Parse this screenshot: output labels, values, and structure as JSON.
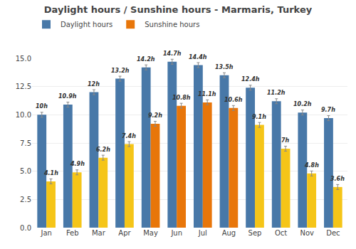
{
  "chart_data": {
    "type": "bar",
    "title": "Daylight hours / Sunshine hours - Marmaris, Turkey",
    "categories": [
      "Jan",
      "Feb",
      "Mar",
      "Apr",
      "May",
      "Jun",
      "Jul",
      "Aug",
      "Sep",
      "Oct",
      "Nov",
      "Dec"
    ],
    "series": [
      {
        "name": "Daylight hours",
        "color": "#4878a8",
        "values": [
          10.0,
          10.9,
          12.0,
          13.2,
          14.2,
          14.7,
          14.4,
          13.5,
          12.4,
          11.2,
          10.2,
          9.7
        ],
        "value_labels": [
          "10h",
          "10.9h",
          "12h",
          "13.2h",
          "14.2h",
          "14.7h",
          "14.4h",
          "13.5h",
          "12.4h",
          "11.2h",
          "10.2h",
          "9.7h"
        ],
        "errors": [
          0.22,
          0.22,
          0.22,
          0.22,
          0.22,
          0.22,
          0.22,
          0.22,
          0.22,
          0.22,
          0.22,
          0.22
        ]
      },
      {
        "name": "Sunshine hours",
        "color": "#e8760a",
        "colors": [
          "#f5c518",
          "#f5c518",
          "#f5c518",
          "#f5c518",
          "#e8760a",
          "#e8760a",
          "#e8760a",
          "#e8760a",
          "#f5c518",
          "#f5c518",
          "#f5c518",
          "#f5c518"
        ],
        "values": [
          4.1,
          4.9,
          6.2,
          7.4,
          9.2,
          10.8,
          11.1,
          10.6,
          9.1,
          7.0,
          4.8,
          3.6
        ],
        "value_labels": [
          "4.1h",
          "4.9h",
          "6.2h",
          "7.4h",
          "9.2h",
          "10.8h",
          "11.1h",
          "10.6h",
          "9.1h",
          "7h",
          "4.8h",
          "3.6h"
        ],
        "errors": [
          0.22,
          0.22,
          0.22,
          0.22,
          0.22,
          0.22,
          0.22,
          0.22,
          0.22,
          0.22,
          0.22,
          0.22
        ]
      }
    ],
    "ylim": [
      0,
      15.0
    ],
    "yticks": [
      {
        "value": 0.0,
        "label": "0.0"
      },
      2.5,
      {
        "value": 5.0,
        "label": "5.0"
      },
      7.5,
      {
        "value": 10.0,
        "label": "10.0"
      },
      12.5,
      {
        "value": 15.0,
        "label": "15.0"
      }
    ],
    "grid": true,
    "legend": "top",
    "data_labels": true
  }
}
